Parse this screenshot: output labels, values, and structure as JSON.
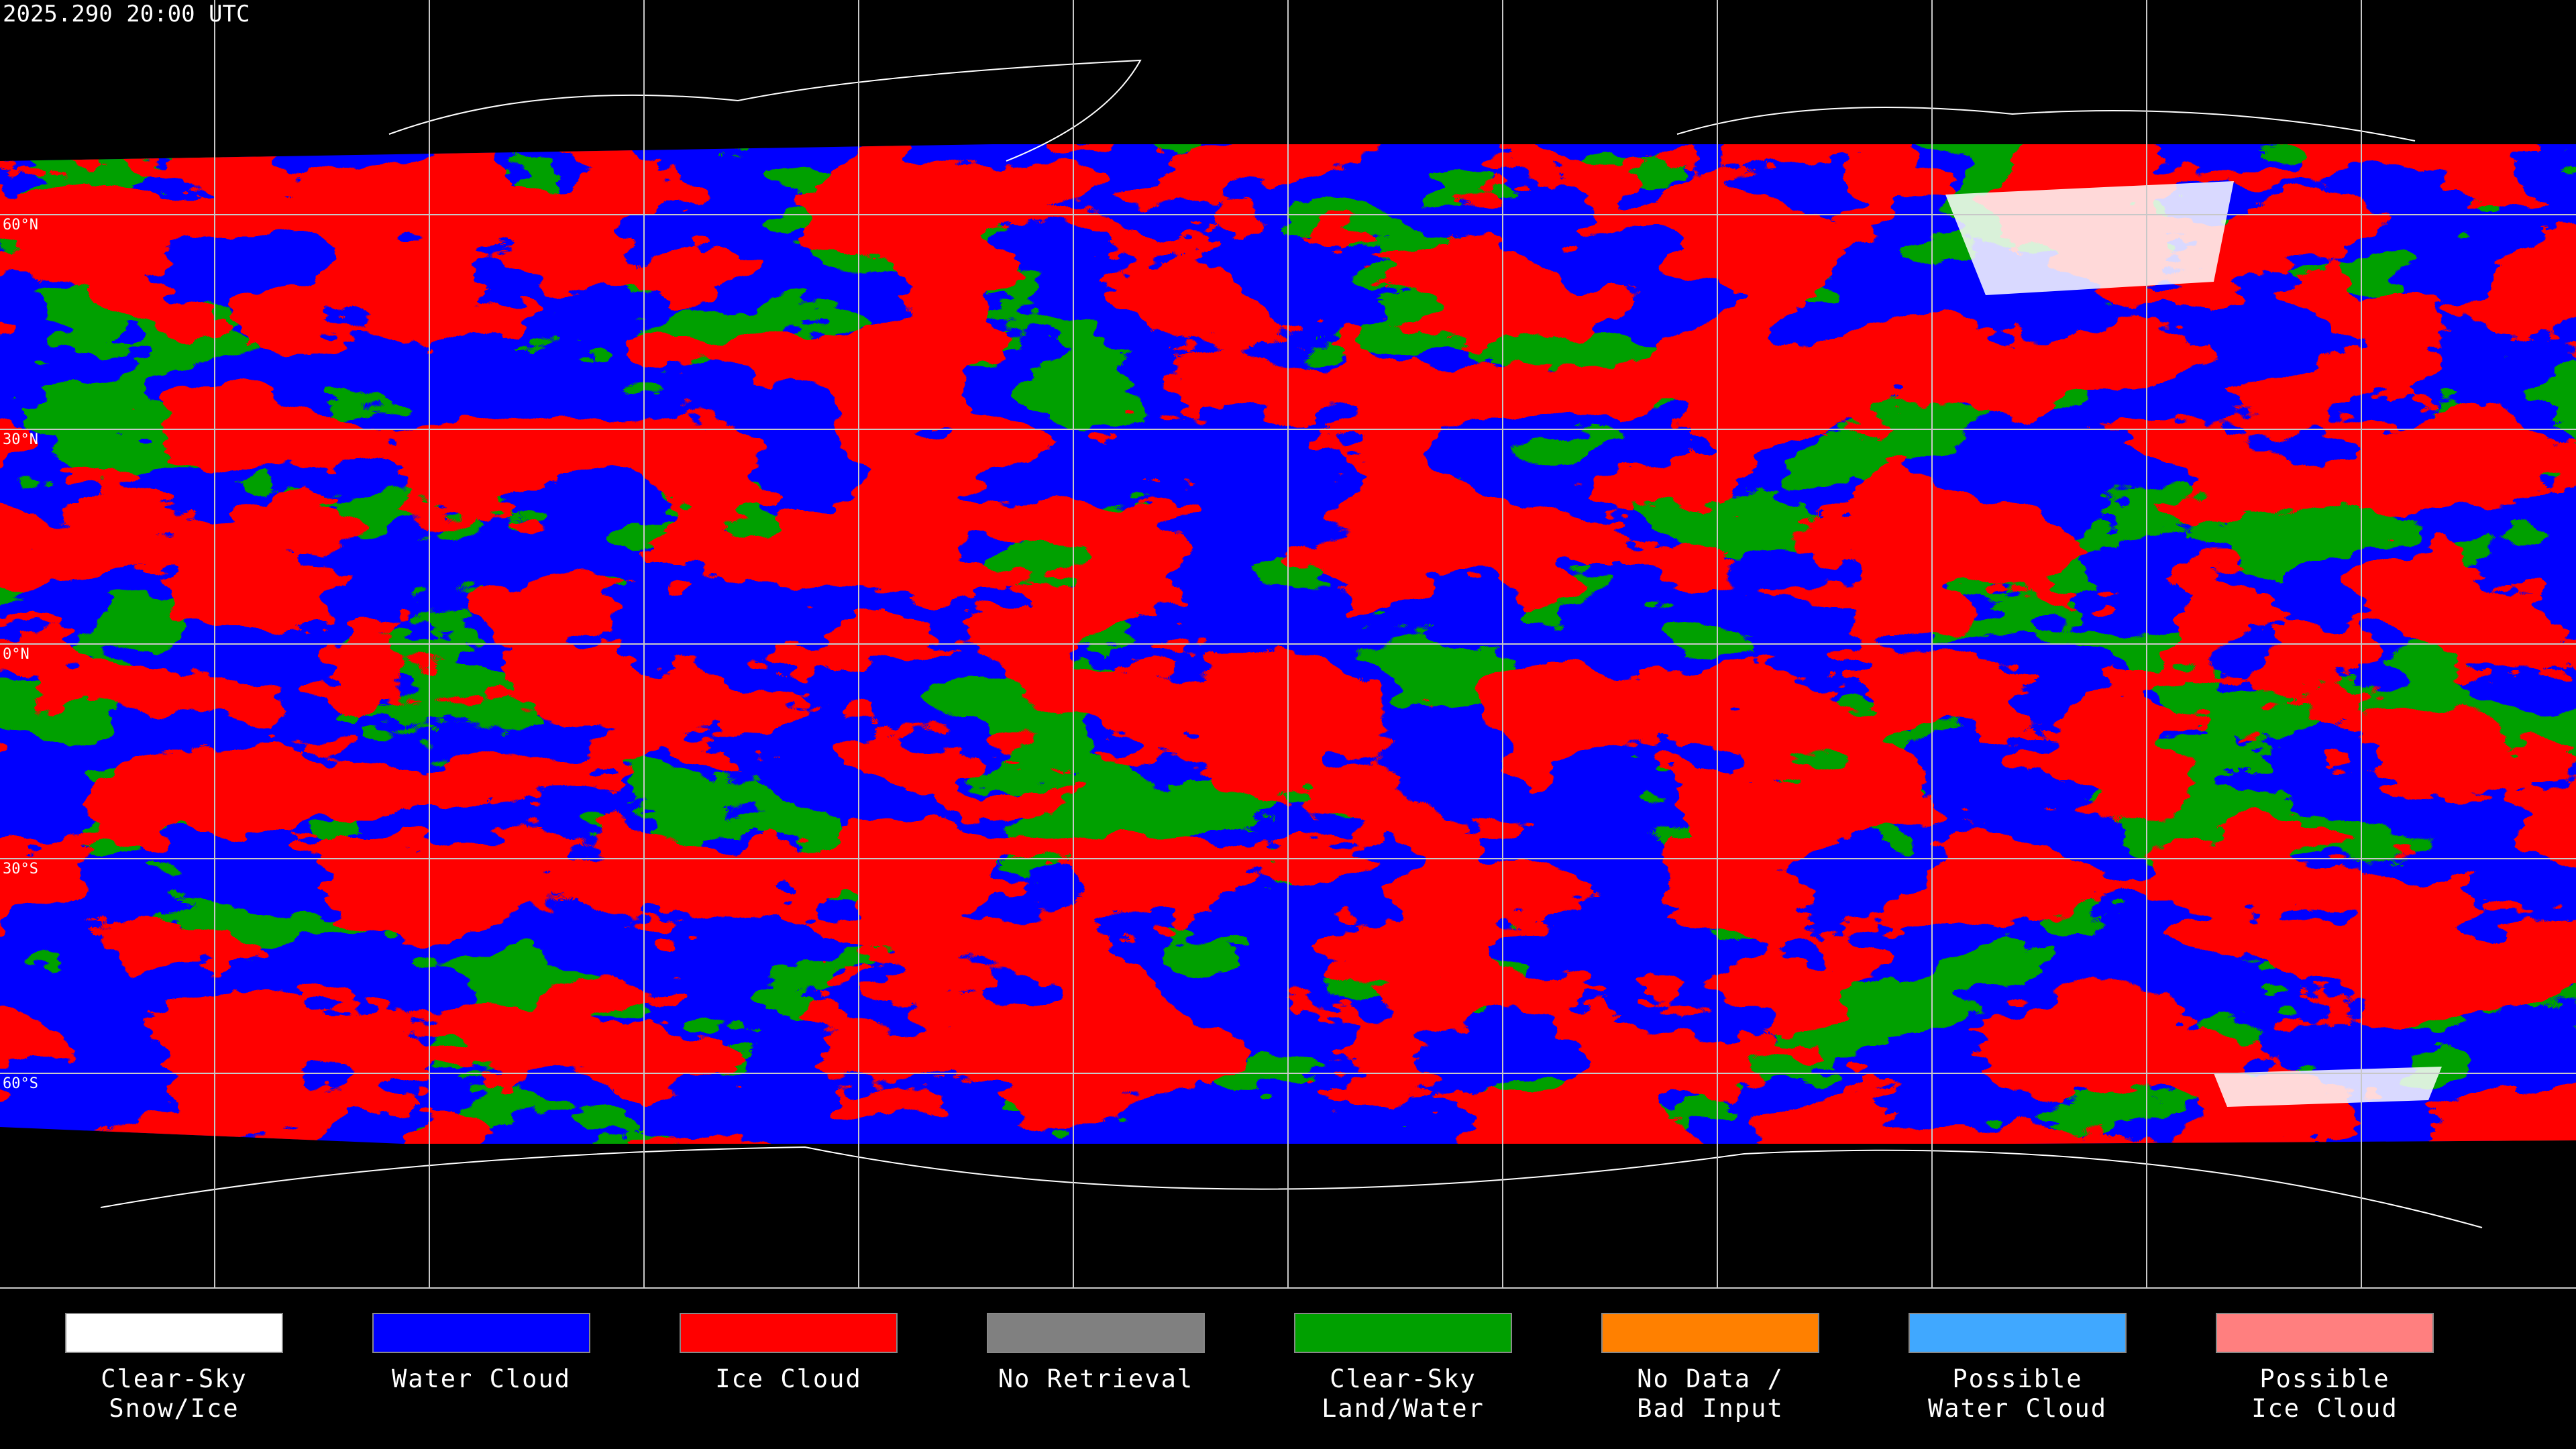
{
  "timestamp": "2025.290 20:00 UTC",
  "latitude_labels": [
    "60°N",
    "30°N",
    "0°N",
    "30°S",
    "60°S"
  ],
  "legend": [
    {
      "lines": [
        "Clear-Sky",
        "Snow/Ice"
      ],
      "color": "#ffffff"
    },
    {
      "lines": [
        "Water Cloud"
      ],
      "color": "#0000ff"
    },
    {
      "lines": [
        "Ice Cloud"
      ],
      "color": "#ff0000"
    },
    {
      "lines": [
        "No Retrieval"
      ],
      "color": "#808080"
    },
    {
      "lines": [
        "Clear-Sky",
        "Land/Water"
      ],
      "color": "#00a000"
    },
    {
      "lines": [
        "No Data /",
        "Bad Input"
      ],
      "color": "#ff8000"
    },
    {
      "lines": [
        "Possible",
        "Water Cloud"
      ],
      "color": "#40a8ff"
    },
    {
      "lines": [
        "Possible",
        "Ice Cloud"
      ],
      "color": "#ff7f7f"
    }
  ]
}
